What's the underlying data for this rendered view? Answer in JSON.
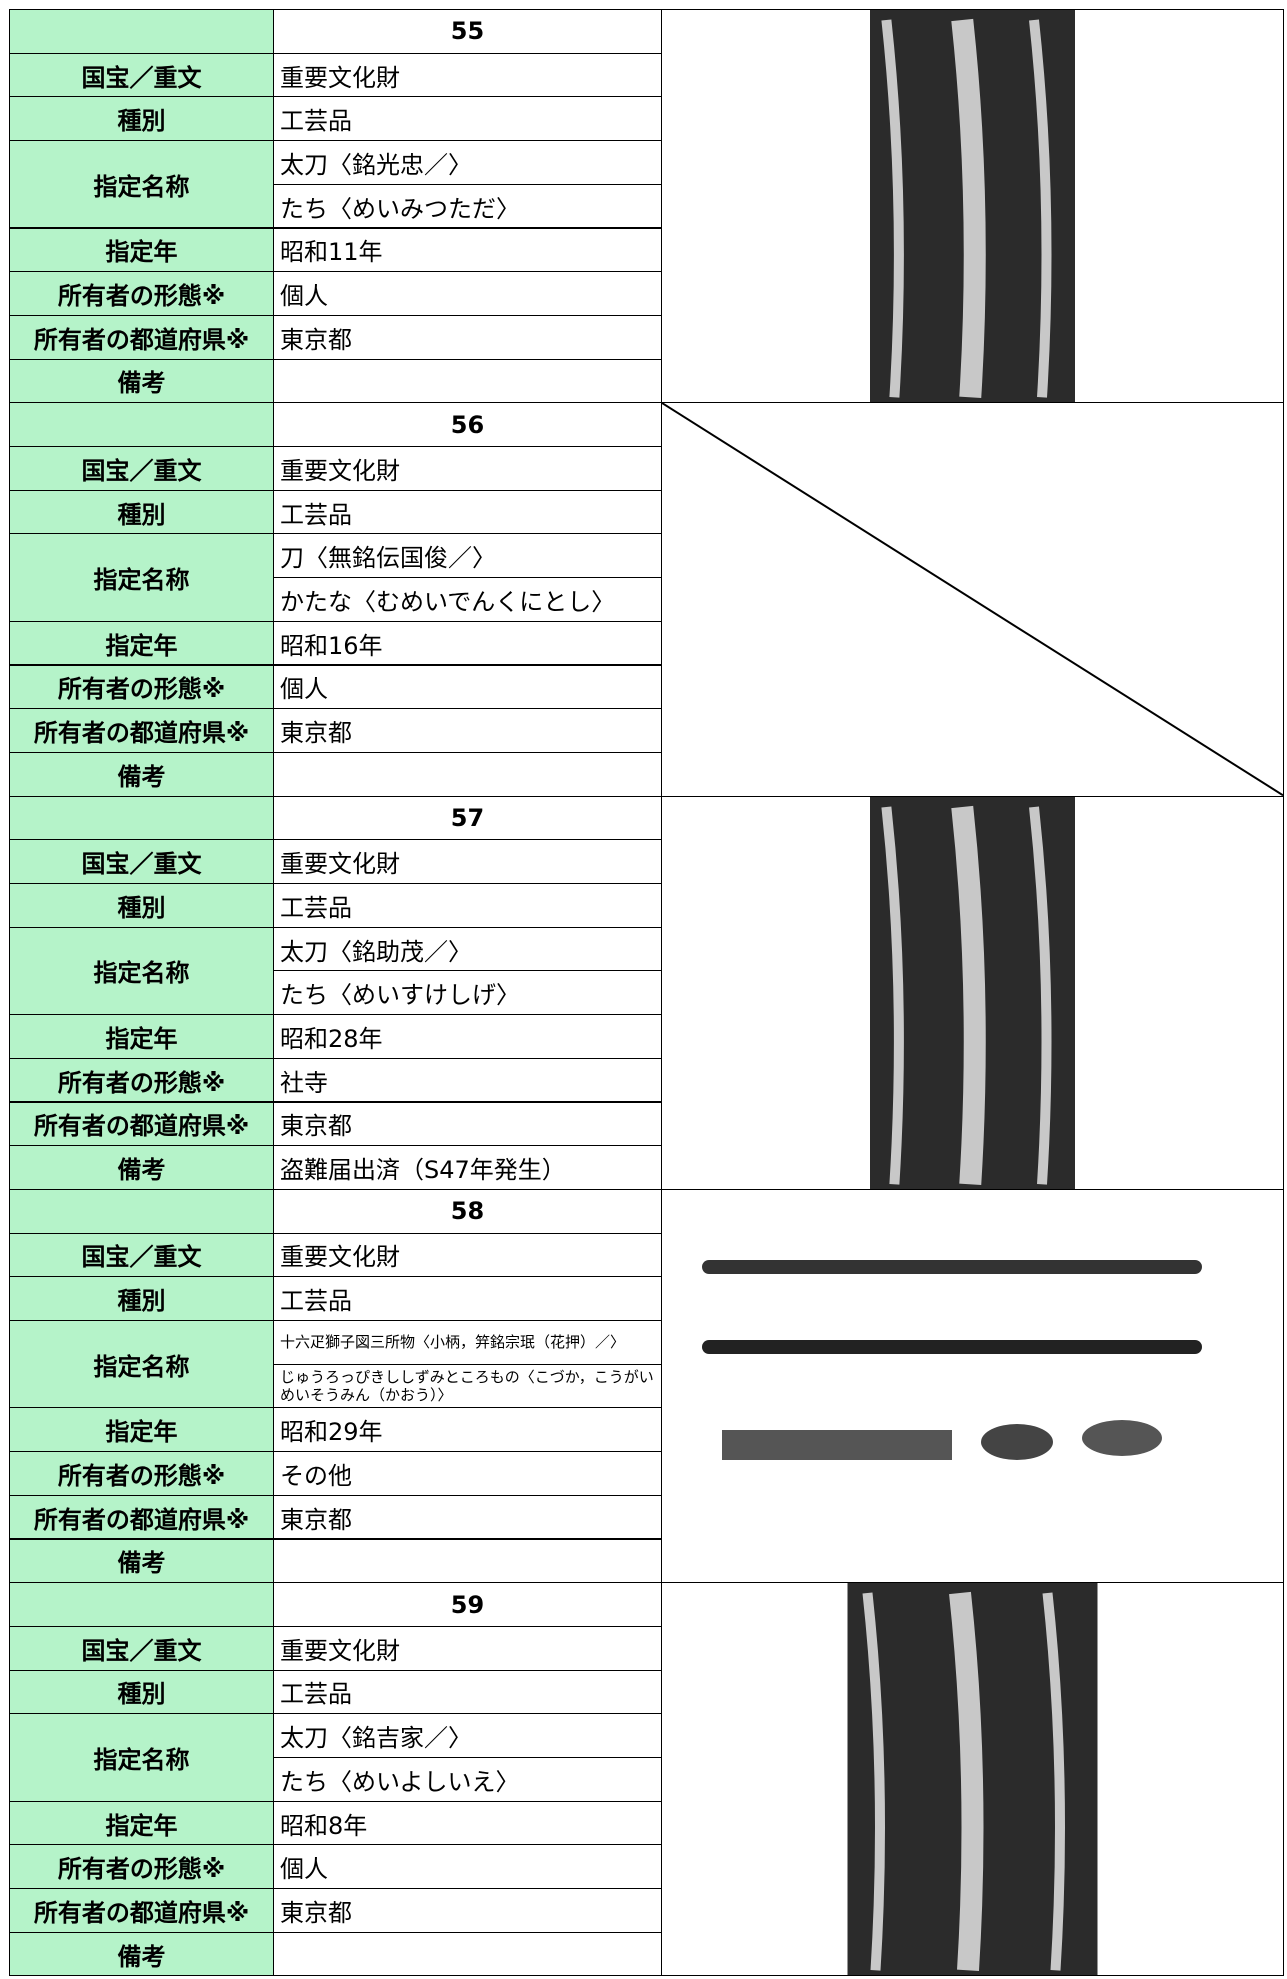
{
  "labels": {
    "designation": "国宝／重文",
    "category": "種別",
    "name": "指定名称",
    "year": "指定年",
    "owner_type": "所有者の形態※",
    "prefecture": "所有者の都道府県※",
    "note": "備考"
  },
  "records": [
    {
      "number": "55",
      "designation": "重要文化財",
      "category": "工芸品",
      "name": [
        "太刀〈銘光忠／〉",
        "たち〈めいみつただ〉"
      ],
      "year": "昭和11年",
      "owner_type": "個人",
      "prefecture": "東京都"
    },
    {
      "number": "56",
      "designation": "重要文化財",
      "category": "工芸品",
      "name": [
        "刀〈無銘伝国俊／〉",
        "かたな〈むめいでんくにとし〉"
      ],
      "year": "昭和16年",
      "owner_type": "個人",
      "prefecture": "東京都"
    },
    {
      "number": "57",
      "designation": "重要文化財",
      "category": "工芸品",
      "name": [
        "太刀〈銘助茂／〉",
        "たち〈めいすけしげ〉"
      ],
      "year": "昭和28年",
      "owner_type": "社寺",
      "prefecture": "東京都",
      "note": "盗難届出済（S47年発生）"
    },
    {
      "number": "58",
      "designation": "重要文化財",
      "category": "工芸品",
      "name": [
        "十六疋獅子図三所物〈小柄，笄銘宗珉（花押）／〉",
        "じゅうろっぴきししずみところもの〈こづか，こうがいめいそうみん（かおう）〉"
      ],
      "year": "昭和29年",
      "owner_type": "その他",
      "prefecture": "東京都"
    },
    {
      "number": "59",
      "designation": "重要文化財",
      "category": "工芸品",
      "name": [
        "太刀〈銘吉家／〉",
        "たち〈めいよしいえ〉"
      ],
      "year": "昭和8年",
      "owner_type": "個人",
      "prefecture": "東京都"
    }
  ]
}
